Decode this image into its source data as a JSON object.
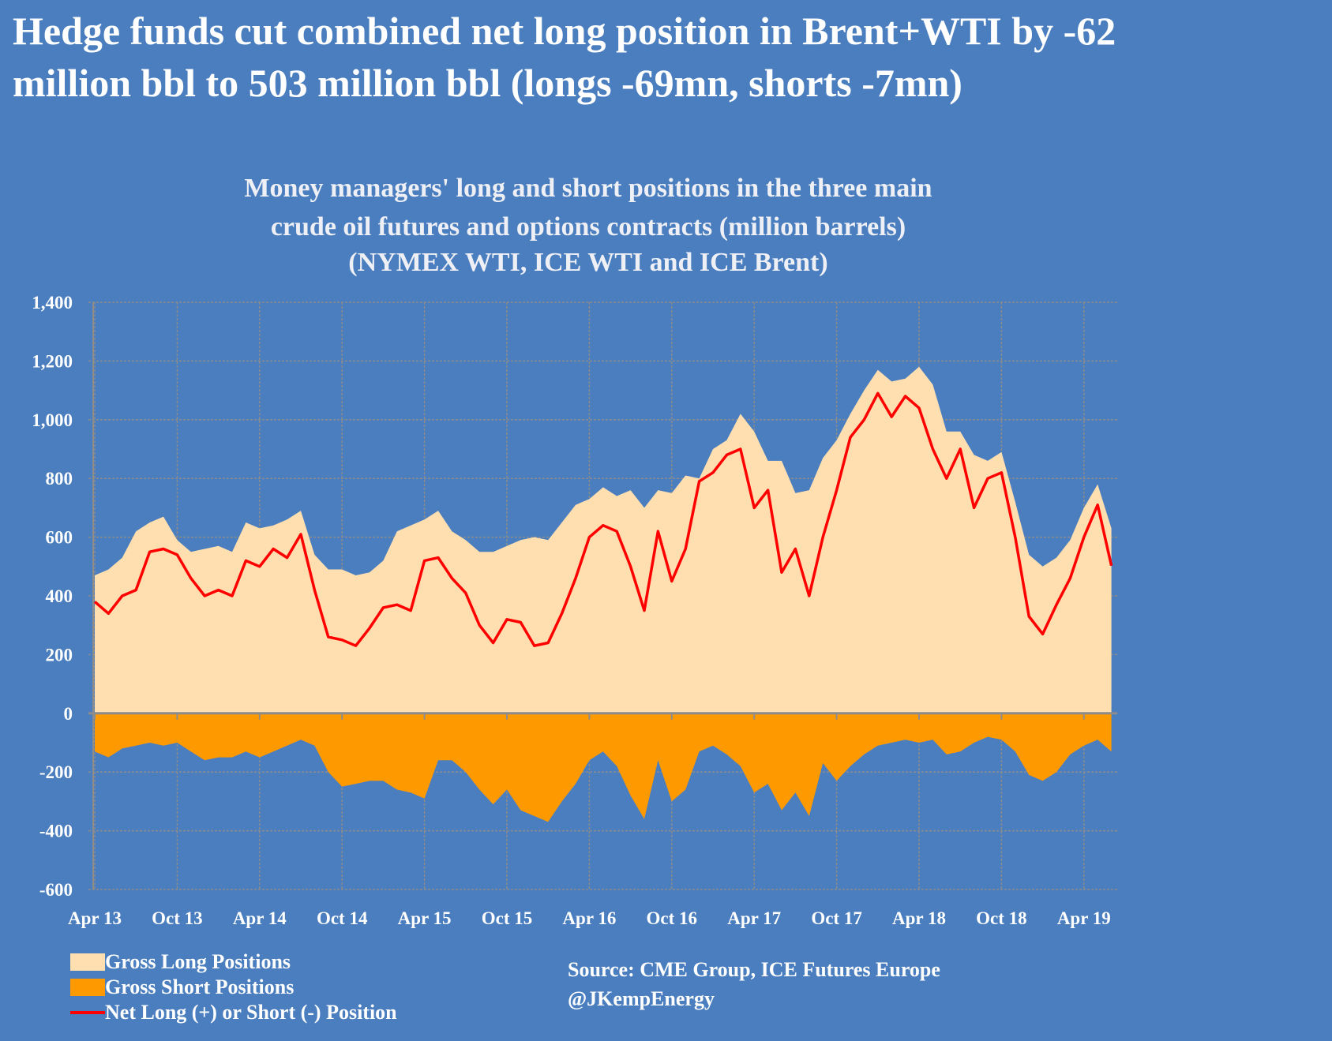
{
  "headline": [
    "Hedge funds cut combined net long position in Brent+WTI by -62",
    "million bbl to 503 million bbl (longs -69mn, shorts -7mn)"
  ],
  "chart_data": {
    "type": "area",
    "title": [
      "Money managers' long and short positions in the three main",
      "crude oil futures and options contracts (million barrels)",
      "(NYMEX WTI, ICE WTI and ICE Brent)"
    ],
    "xlabel": "",
    "ylabel": "",
    "ylim": [
      -600,
      1400
    ],
    "yticks": [
      1400,
      1200,
      1000,
      800,
      600,
      400,
      200,
      0,
      -200,
      -400,
      -600
    ],
    "ytick_labels": [
      "1,400",
      "1,200",
      "1,000",
      "800",
      "600",
      "400",
      "200",
      "0",
      "-200",
      "-400",
      "-600"
    ],
    "xtick_labels": [
      "Apr 13",
      "Oct 13",
      "Apr 14",
      "Oct 14",
      "Apr 15",
      "Oct 15",
      "Apr 16",
      "Oct 16",
      "Apr 17",
      "Oct 17",
      "Apr 18",
      "Oct 18",
      "Apr 19"
    ],
    "grid": true,
    "legend_position": "bottom-left",
    "x": [
      "2013-04",
      "2013-05",
      "2013-06",
      "2013-07",
      "2013-08",
      "2013-09",
      "2013-10",
      "2013-11",
      "2013-12",
      "2014-01",
      "2014-02",
      "2014-03",
      "2014-04",
      "2014-05",
      "2014-06",
      "2014-07",
      "2014-08",
      "2014-09",
      "2014-10",
      "2014-11",
      "2014-12",
      "2015-01",
      "2015-02",
      "2015-03",
      "2015-04",
      "2015-05",
      "2015-06",
      "2015-07",
      "2015-08",
      "2015-09",
      "2015-10",
      "2015-11",
      "2015-12",
      "2016-01",
      "2016-02",
      "2016-03",
      "2016-04",
      "2016-05",
      "2016-06",
      "2016-07",
      "2016-08",
      "2016-09",
      "2016-10",
      "2016-11",
      "2016-12",
      "2017-01",
      "2017-02",
      "2017-03",
      "2017-04",
      "2017-05",
      "2017-06",
      "2017-07",
      "2017-08",
      "2017-09",
      "2017-10",
      "2017-11",
      "2017-12",
      "2018-01",
      "2018-02",
      "2018-03",
      "2018-04",
      "2018-05",
      "2018-06",
      "2018-07",
      "2018-08",
      "2018-09",
      "2018-10",
      "2018-11",
      "2018-12",
      "2019-01",
      "2019-02",
      "2019-03",
      "2019-04",
      "2019-05",
      "2019-06"
    ],
    "series": [
      {
        "name": "Gross Long Positions",
        "kind": "area",
        "color": "#ffdfb0",
        "values": [
          470,
          490,
          530,
          620,
          650,
          670,
          590,
          550,
          560,
          570,
          550,
          650,
          630,
          640,
          660,
          690,
          540,
          490,
          490,
          470,
          480,
          520,
          620,
          640,
          660,
          690,
          620,
          590,
          550,
          550,
          570,
          590,
          600,
          590,
          650,
          710,
          730,
          770,
          740,
          760,
          700,
          760,
          750,
          810,
          800,
          900,
          930,
          1020,
          960,
          860,
          860,
          750,
          760,
          870,
          930,
          1020,
          1100,
          1170,
          1130,
          1140,
          1180,
          1120,
          960,
          960,
          880,
          860,
          890,
          720,
          540,
          500,
          530,
          590,
          700,
          780,
          630
        ]
      },
      {
        "name": "Gross Short Positions",
        "kind": "area",
        "color": "#ff9900",
        "values": [
          -130,
          -150,
          -120,
          -110,
          -100,
          -110,
          -100,
          -130,
          -160,
          -150,
          -150,
          -130,
          -150,
          -130,
          -110,
          -90,
          -110,
          -200,
          -250,
          -240,
          -230,
          -230,
          -260,
          -270,
          -290,
          -160,
          -160,
          -200,
          -260,
          -310,
          -260,
          -330,
          -350,
          -370,
          -300,
          -240,
          -160,
          -130,
          -180,
          -280,
          -360,
          -160,
          -300,
          -260,
          -130,
          -110,
          -140,
          -180,
          -270,
          -240,
          -330,
          -270,
          -350,
          -170,
          -230,
          -180,
          -140,
          -110,
          -100,
          -90,
          -100,
          -90,
          -140,
          -130,
          -100,
          -80,
          -90,
          -130,
          -210,
          -230,
          -200,
          -140,
          -110,
          -90,
          -130
        ]
      },
      {
        "name": "Net Long (+) or Short (-) Position",
        "kind": "line",
        "color": "#ff0000",
        "values": [
          380,
          340,
          400,
          420,
          550,
          560,
          540,
          460,
          400,
          420,
          400,
          520,
          500,
          560,
          530,
          610,
          420,
          260,
          250,
          230,
          290,
          360,
          370,
          350,
          520,
          530,
          460,
          410,
          300,
          240,
          320,
          310,
          230,
          240,
          340,
          460,
          600,
          640,
          620,
          500,
          350,
          620,
          450,
          560,
          790,
          820,
          880,
          900,
          700,
          760,
          480,
          560,
          400,
          600,
          760,
          940,
          1000,
          1090,
          1010,
          1080,
          1040,
          900,
          800,
          900,
          700,
          800,
          820,
          600,
          330,
          270,
          370,
          460,
          600,
          710,
          503
        ]
      }
    ]
  },
  "source": [
    "Source:  CME Group, ICE Futures Europe",
    "@JKempEnergy"
  ],
  "colors": {
    "background": "#4a7ebf",
    "grid": "#8c8c8c"
  }
}
